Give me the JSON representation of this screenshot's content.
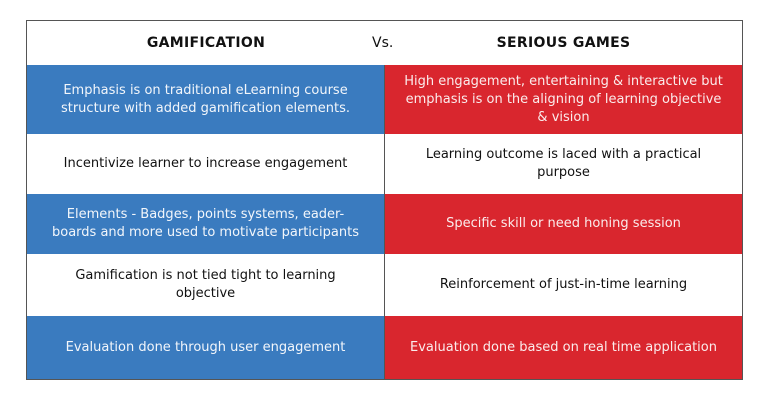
{
  "header": {
    "left": "GAMIFICATION",
    "vs": "Vs.",
    "right": "SERIOUS GAMES"
  },
  "colors": {
    "blue": "#3a7bbf",
    "red": "#d9262e"
  },
  "rows": [
    {
      "left": "Emphasis is on traditional eLearning course structure with added gamification elements.",
      "right": "High engagement, entertaining & interactive but emphasis is on the aligning of learning objective & vision"
    },
    {
      "left": "Incentivize learner to increase engagement",
      "right": "Learning outcome is laced with a practical purpose"
    },
    {
      "left": "Elements - Badges, points systems, eader-boards and more used to motivate participants",
      "right": "Specific skill or need honing session"
    },
    {
      "left": "Gamification is not tied tight to learning objective",
      "right": "Reinforcement of just-in-time learning"
    },
    {
      "left": "Evaluation done through user engagement",
      "right": "Evaluation done based on real time application"
    }
  ]
}
